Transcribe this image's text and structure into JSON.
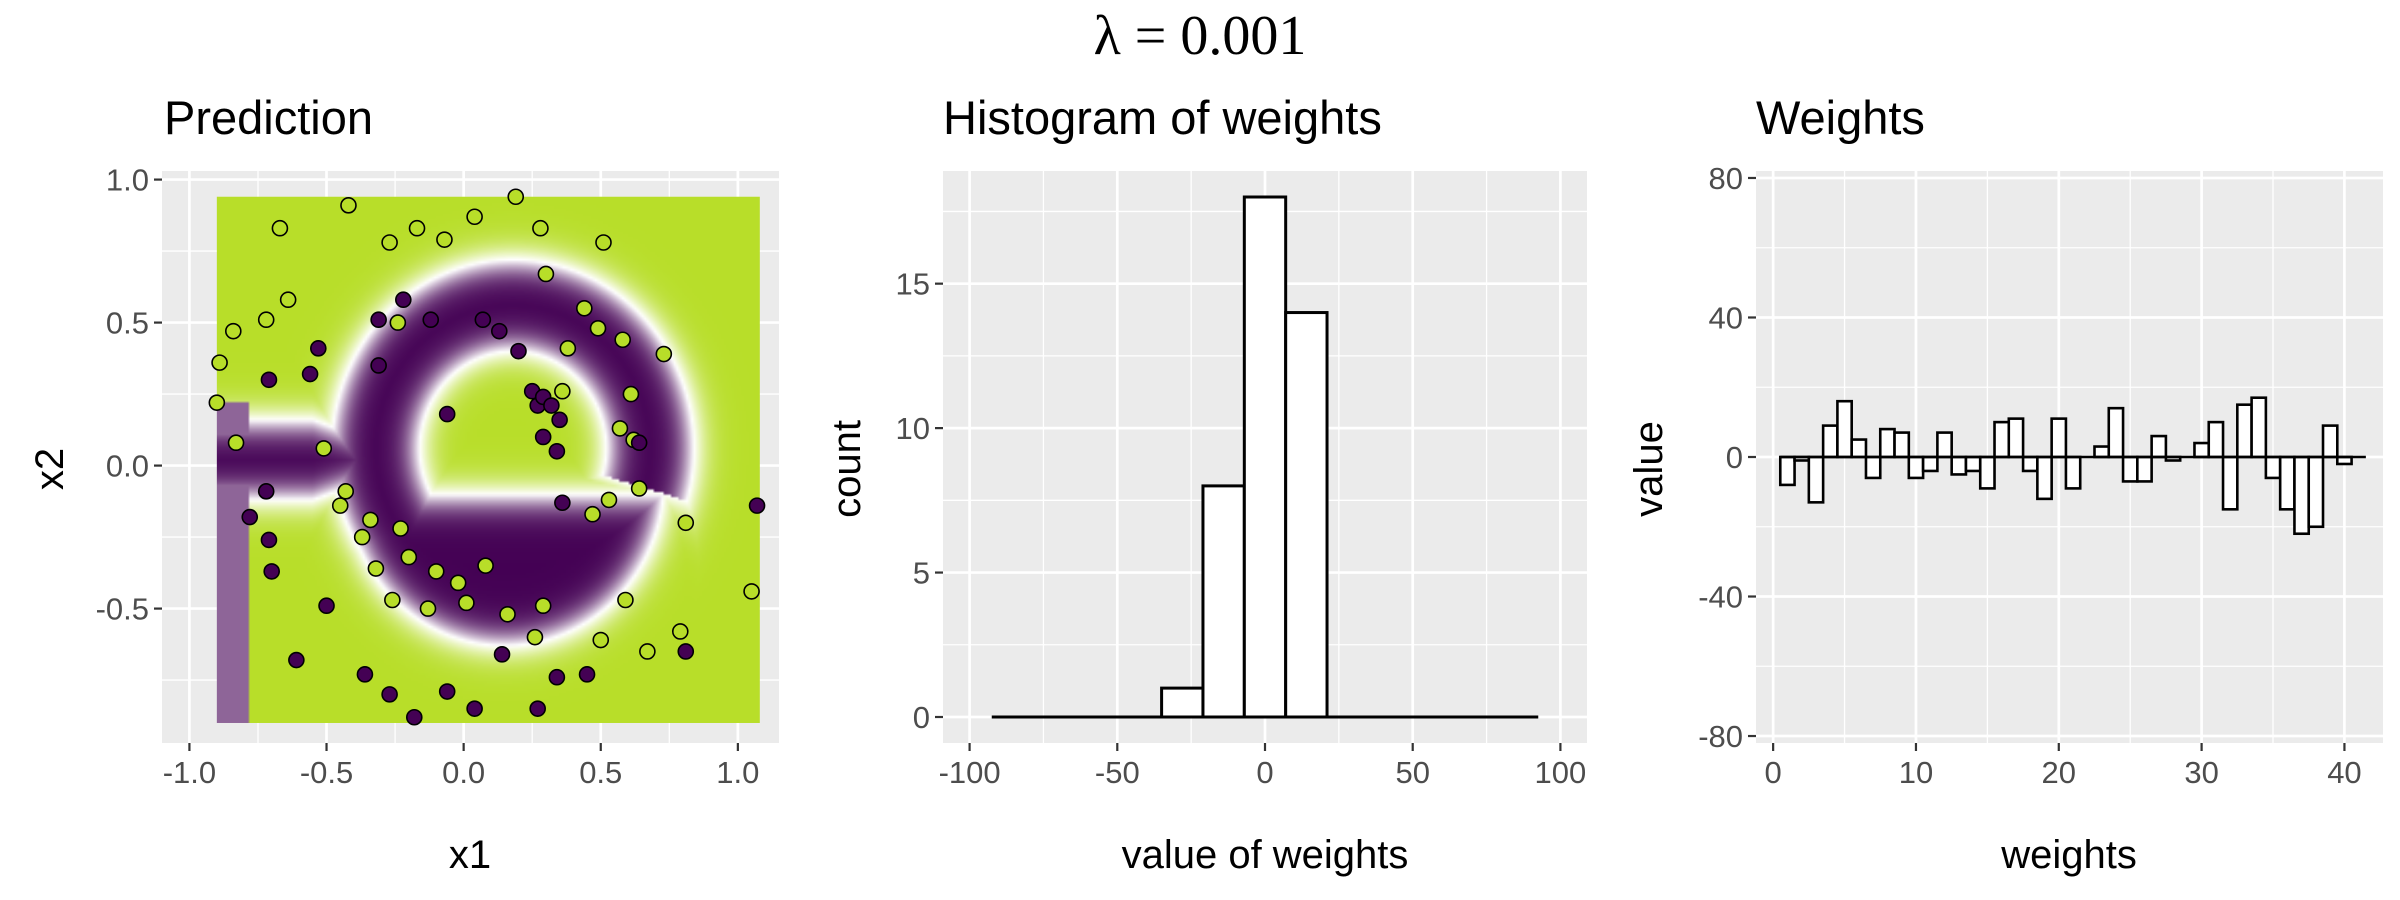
{
  "figure": {
    "suptitle": "λ = 0.001",
    "background": "#ffffff",
    "panel_background": "#ebebeb",
    "grid_color": "#ffffff"
  },
  "chart_data": [
    {
      "type": "scatter",
      "title": "Prediction",
      "xlabel": "x1",
      "ylabel": "x2",
      "xlim": [
        -1.1,
        1.15
      ],
      "ylim": [
        -0.97,
        1.03
      ],
      "x_ticks": [
        "-1.0",
        "-0.5",
        "0.0",
        "0.5",
        "1.0"
      ],
      "y_ticks": [
        "-0.5",
        "0.0",
        "0.5",
        "1.0"
      ],
      "x_tick_values": [
        -1.0,
        -0.5,
        0.0,
        0.5,
        1.0
      ],
      "y_tick_values": [
        -0.5,
        0.0,
        0.5,
        1.0
      ],
      "prediction_extent": {
        "x": [
          -0.9,
          1.08
        ],
        "y": [
          -0.9,
          0.94
        ]
      },
      "colors": {
        "class_high": "#b8de29",
        "class_low": "#440154"
      },
      "points": [
        {
          "x": -0.9,
          "y": 0.22,
          "class": 1
        },
        {
          "x": -0.89,
          "y": 0.36,
          "class": 1
        },
        {
          "x": -0.84,
          "y": 0.47,
          "class": 1
        },
        {
          "x": -0.83,
          "y": 0.08,
          "class": 1
        },
        {
          "x": -0.78,
          "y": -0.18,
          "class": 0
        },
        {
          "x": -0.72,
          "y": 0.51,
          "class": 1
        },
        {
          "x": -0.71,
          "y": 0.3,
          "class": 0
        },
        {
          "x": -0.72,
          "y": -0.09,
          "class": 0
        },
        {
          "x": -0.71,
          "y": -0.26,
          "class": 0
        },
        {
          "x": -0.7,
          "y": -0.37,
          "class": 0
        },
        {
          "x": -0.67,
          "y": 0.83,
          "class": 1
        },
        {
          "x": -0.64,
          "y": 0.58,
          "class": 1
        },
        {
          "x": -0.61,
          "y": -0.68,
          "class": 0
        },
        {
          "x": -0.56,
          "y": 0.32,
          "class": 0
        },
        {
          "x": -0.53,
          "y": 0.41,
          "class": 0
        },
        {
          "x": -0.51,
          "y": 0.06,
          "class": 1
        },
        {
          "x": -0.5,
          "y": -0.49,
          "class": 0
        },
        {
          "x": -0.45,
          "y": -0.14,
          "class": 1
        },
        {
          "x": -0.42,
          "y": 0.91,
          "class": 1
        },
        {
          "x": -0.43,
          "y": -0.09,
          "class": 1
        },
        {
          "x": -0.37,
          "y": -0.25,
          "class": 1
        },
        {
          "x": -0.36,
          "y": -0.73,
          "class": 0
        },
        {
          "x": -0.34,
          "y": -0.19,
          "class": 1
        },
        {
          "x": -0.31,
          "y": 0.51,
          "class": 0
        },
        {
          "x": -0.32,
          "y": -0.36,
          "class": 1
        },
        {
          "x": -0.31,
          "y": 0.35,
          "class": 0
        },
        {
          "x": -0.27,
          "y": 0.78,
          "class": 1
        },
        {
          "x": -0.26,
          "y": -0.47,
          "class": 1
        },
        {
          "x": -0.27,
          "y": -0.8,
          "class": 0
        },
        {
          "x": -0.24,
          "y": 0.5,
          "class": 1
        },
        {
          "x": -0.23,
          "y": -0.22,
          "class": 1
        },
        {
          "x": -0.22,
          "y": 0.58,
          "class": 0
        },
        {
          "x": -0.2,
          "y": -0.32,
          "class": 1
        },
        {
          "x": -0.18,
          "y": -0.88,
          "class": 0
        },
        {
          "x": -0.17,
          "y": 0.83,
          "class": 1
        },
        {
          "x": -0.12,
          "y": 0.51,
          "class": 0
        },
        {
          "x": -0.13,
          "y": -0.5,
          "class": 1
        },
        {
          "x": -0.1,
          "y": -0.37,
          "class": 1
        },
        {
          "x": -0.07,
          "y": 0.79,
          "class": 1
        },
        {
          "x": -0.06,
          "y": 0.18,
          "class": 0
        },
        {
          "x": -0.06,
          "y": -0.79,
          "class": 0
        },
        {
          "x": -0.02,
          "y": -0.41,
          "class": 1
        },
        {
          "x": 0.01,
          "y": -0.48,
          "class": 1
        },
        {
          "x": 0.04,
          "y": 0.87,
          "class": 1
        },
        {
          "x": 0.04,
          "y": -0.85,
          "class": 0
        },
        {
          "x": 0.07,
          "y": 0.51,
          "class": 0
        },
        {
          "x": 0.08,
          "y": -0.35,
          "class": 1
        },
        {
          "x": 0.13,
          "y": 0.47,
          "class": 0
        },
        {
          "x": 0.14,
          "y": -0.66,
          "class": 0
        },
        {
          "x": 0.16,
          "y": -0.52,
          "class": 1
        },
        {
          "x": 0.19,
          "y": 0.94,
          "class": 1
        },
        {
          "x": 0.2,
          "y": 0.4,
          "class": 0
        },
        {
          "x": 0.25,
          "y": 0.26,
          "class": 0
        },
        {
          "x": 0.26,
          "y": -0.6,
          "class": 1
        },
        {
          "x": 0.27,
          "y": 0.21,
          "class": 0
        },
        {
          "x": 0.27,
          "y": -0.85,
          "class": 0
        },
        {
          "x": 0.28,
          "y": 0.83,
          "class": 1
        },
        {
          "x": 0.29,
          "y": 0.1,
          "class": 0
        },
        {
          "x": 0.29,
          "y": 0.24,
          "class": 0
        },
        {
          "x": 0.29,
          "y": -0.49,
          "class": 1
        },
        {
          "x": 0.3,
          "y": 0.67,
          "class": 1
        },
        {
          "x": 0.32,
          "y": 0.21,
          "class": 0
        },
        {
          "x": 0.34,
          "y": 0.05,
          "class": 0
        },
        {
          "x": 0.34,
          "y": -0.74,
          "class": 0
        },
        {
          "x": 0.35,
          "y": 0.16,
          "class": 0
        },
        {
          "x": 0.36,
          "y": -0.13,
          "class": 0
        },
        {
          "x": 0.36,
          "y": 0.26,
          "class": 1
        },
        {
          "x": 0.38,
          "y": 0.41,
          "class": 1
        },
        {
          "x": 0.44,
          "y": 0.55,
          "class": 1
        },
        {
          "x": 0.45,
          "y": -0.73,
          "class": 0
        },
        {
          "x": 0.47,
          "y": -0.17,
          "class": 1
        },
        {
          "x": 0.49,
          "y": 0.48,
          "class": 1
        },
        {
          "x": 0.5,
          "y": -0.61,
          "class": 1
        },
        {
          "x": 0.51,
          "y": 0.78,
          "class": 1
        },
        {
          "x": 0.53,
          "y": -0.12,
          "class": 1
        },
        {
          "x": 0.57,
          "y": 0.13,
          "class": 1
        },
        {
          "x": 0.58,
          "y": 0.44,
          "class": 1
        },
        {
          "x": 0.59,
          "y": -0.47,
          "class": 1
        },
        {
          "x": 0.61,
          "y": 0.25,
          "class": 1
        },
        {
          "x": 0.62,
          "y": 0.09,
          "class": 1
        },
        {
          "x": 0.64,
          "y": 0.08,
          "class": 0
        },
        {
          "x": 0.64,
          "y": -0.08,
          "class": 1
        },
        {
          "x": 0.67,
          "y": -0.65,
          "class": 1
        },
        {
          "x": 0.73,
          "y": 0.39,
          "class": 1
        },
        {
          "x": 0.79,
          "y": -0.58,
          "class": 1
        },
        {
          "x": 0.81,
          "y": -0.2,
          "class": 1
        },
        {
          "x": 0.81,
          "y": -0.65,
          "class": 0
        },
        {
          "x": 1.05,
          "y": -0.44,
          "class": 1
        },
        {
          "x": 1.07,
          "y": -0.14,
          "class": 0
        }
      ]
    },
    {
      "type": "bar",
      "title": "Histogram of weights",
      "xlabel": "value of weights",
      "ylabel": "count",
      "xlim": [
        -109,
        109
      ],
      "ylim": [
        -0.9,
        18.9
      ],
      "x_ticks": [
        "-100",
        "-50",
        "0",
        "50",
        "100"
      ],
      "y_ticks": [
        "0",
        "5",
        "10",
        "15"
      ],
      "x_tick_values": [
        -100,
        -50,
        0,
        50,
        100
      ],
      "y_tick_values": [
        0,
        5,
        10,
        15
      ],
      "bins": [
        {
          "from": -92.5,
          "to": -35.0,
          "count": 0
        },
        {
          "from": -35.0,
          "to": -21.0,
          "count": 1
        },
        {
          "from": -21.0,
          "to": -7.0,
          "count": 8
        },
        {
          "from": -7.0,
          "to": 7.0,
          "count": 18
        },
        {
          "from": 7.0,
          "to": 21.0,
          "count": 14
        },
        {
          "from": 21.0,
          "to": 92.5,
          "count": 0
        }
      ]
    },
    {
      "type": "bar",
      "title": "Weights",
      "xlabel": "weights",
      "ylabel": "value",
      "xlim": [
        -1.2,
        42.7
      ],
      "ylim": [
        -82,
        82
      ],
      "x_ticks": [
        "0",
        "10",
        "20",
        "30",
        "40"
      ],
      "y_ticks": [
        "-80",
        "-40",
        "0",
        "40",
        "80"
      ],
      "x_tick_values": [
        0,
        10,
        20,
        30,
        40
      ],
      "y_tick_values": [
        -80,
        -40,
        0,
        40,
        80
      ],
      "categories": [
        1,
        2,
        3,
        4,
        5,
        6,
        7,
        8,
        9,
        10,
        11,
        12,
        13,
        14,
        15,
        16,
        17,
        18,
        19,
        20,
        21,
        22,
        23,
        24,
        25,
        26,
        27,
        28,
        29,
        30,
        31,
        32,
        33,
        34,
        35,
        36,
        37,
        38,
        39,
        40,
        41
      ],
      "values": [
        -8,
        -1,
        -13,
        9,
        16,
        5,
        -6,
        8,
        7,
        -6,
        -4,
        7,
        -5,
        -4,
        -9,
        10,
        11,
        -4,
        -12,
        11,
        -9,
        0,
        3,
        14,
        -7,
        -7,
        6,
        -1,
        0,
        4,
        10,
        -15,
        15,
        17,
        -6,
        -15,
        -22,
        -20,
        9,
        -2,
        0
      ]
    }
  ]
}
